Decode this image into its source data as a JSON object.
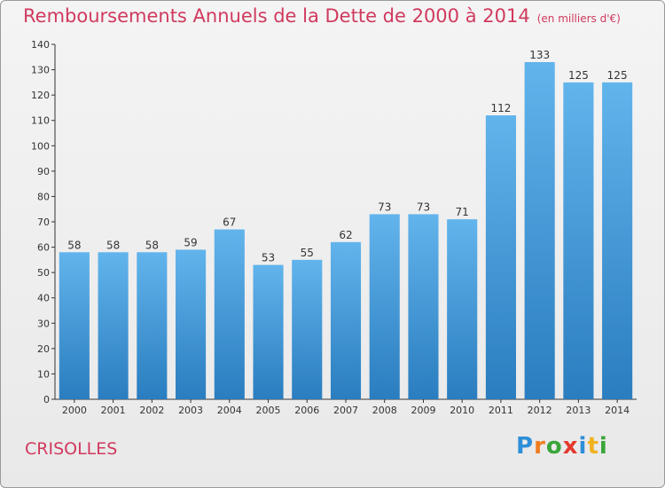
{
  "header": {
    "title": "Remboursements Annuels de la Dette de 2000 à 2014",
    "unit": "(en milliers d'€)"
  },
  "footer": {
    "commune": "CRISOLLES",
    "logo_letters": [
      "P",
      "r",
      "o",
      "x",
      "i",
      "t",
      "i"
    ],
    "logo_colors": [
      "#2e8fd8",
      "#f07c1e",
      "#3aa53a",
      "#e33b2e",
      "#2e8fd8",
      "#f0b21e",
      "#3aa53a"
    ]
  },
  "chart_data": {
    "type": "bar",
    "categories": [
      "2000",
      "2001",
      "2002",
      "2003",
      "2004",
      "2005",
      "2006",
      "2007",
      "2008",
      "2009",
      "2010",
      "2011",
      "2012",
      "2013",
      "2014"
    ],
    "values": [
      58,
      58,
      58,
      59,
      67,
      53,
      55,
      62,
      73,
      73,
      71,
      112,
      133,
      125,
      125
    ],
    "ylim": [
      0,
      140
    ],
    "yticks": [
      0,
      10,
      20,
      30,
      40,
      50,
      60,
      70,
      80,
      90,
      100,
      110,
      120,
      130,
      140
    ],
    "grid": false,
    "bar_color_top": "#62b4ec",
    "bar_color_bottom": "#2a7dbf"
  }
}
